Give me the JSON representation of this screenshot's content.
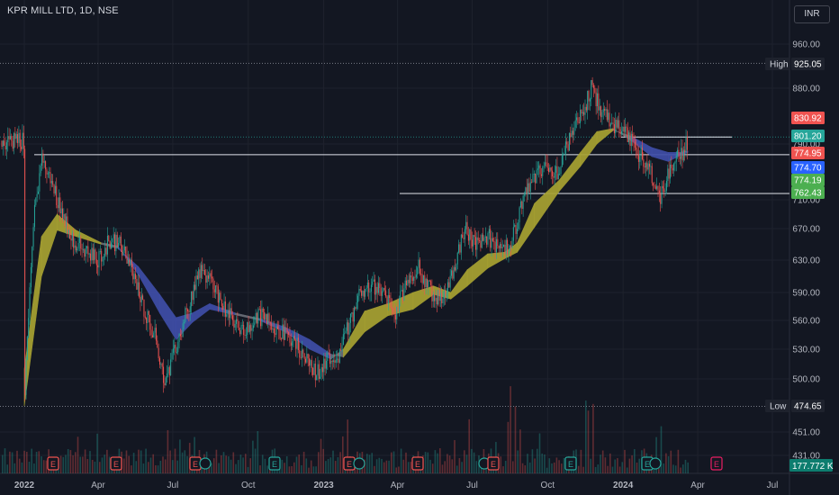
{
  "header": {
    "title": "KPR MILL LTD, 1D, NSE",
    "currency": "INR"
  },
  "colors": {
    "up": "#26a69a",
    "down": "#ef5350",
    "ribbon_bull": "#a8a232",
    "ribbon_bear": "#3f4ea8",
    "ribbon_neutral": "#6b6f78"
  },
  "chart_data": {
    "type": "candlestick",
    "symbol": "KPR MILL LTD",
    "interval": "1D",
    "exchange": "NSE",
    "y_axis_ticks": [
      960,
      880,
      830.92,
      801.2,
      790,
      774.95,
      774.7,
      774.19,
      762.43,
      710,
      670,
      630,
      590,
      560,
      530,
      500,
      474.65,
      451,
      431
    ],
    "price_tick_labels": [
      "960.00",
      "880.00",
      "790.00",
      "710.00",
      "670.00",
      "630.00",
      "590.00",
      "560.00",
      "530.00",
      "500.00",
      "451.00",
      "431.00"
    ],
    "x_axis_labels": [
      "2022",
      "Apr",
      "Jul",
      "Oct",
      "2023",
      "Apr",
      "Jul",
      "Oct",
      "2024",
      "Apr",
      "Jul"
    ],
    "high": {
      "label": "High",
      "value": "925.05"
    },
    "low": {
      "label": "Low",
      "value": "474.65"
    },
    "price_tags": [
      {
        "value": "830.92",
        "color": "#ef5350"
      },
      {
        "value": "801.20",
        "color": "#26a69a"
      },
      {
        "value": "774.95",
        "color": "#ef5350"
      },
      {
        "value": "774.70",
        "color": "#2962ff"
      },
      {
        "value": "774.19",
        "color": "#4caf50"
      },
      {
        "value": "762.43",
        "color": "#4caf50"
      }
    ],
    "volume_label": "177.772 K",
    "horizontal_lines": [
      774.7,
      801.2,
      719
    ],
    "price_path": [
      [
        "2022-01-01",
        480
      ],
      [
        "2022-01-08",
        600
      ],
      [
        "2022-01-14",
        700
      ],
      [
        "2022-01-22",
        768
      ],
      [
        "2022-02-03",
        735
      ],
      [
        "2022-02-17",
        690
      ],
      [
        "2022-03-02",
        655
      ],
      [
        "2022-03-17",
        640
      ],
      [
        "2022-04-01",
        630
      ],
      [
        "2022-04-15",
        655
      ],
      [
        "2022-04-28",
        650
      ],
      [
        "2022-05-12",
        618
      ],
      [
        "2022-05-26",
        575
      ],
      [
        "2022-06-09",
        545
      ],
      [
        "2022-06-22",
        495
      ],
      [
        "2022-07-08",
        540
      ],
      [
        "2022-07-20",
        575
      ],
      [
        "2022-08-03",
        618
      ],
      [
        "2022-08-18",
        602
      ],
      [
        "2022-09-01",
        575
      ],
      [
        "2022-09-15",
        555
      ],
      [
        "2022-09-29",
        548
      ],
      [
        "2022-10-13",
        565
      ],
      [
        "2022-10-27",
        560
      ],
      [
        "2022-11-10",
        548
      ],
      [
        "2022-11-25",
        538
      ],
      [
        "2022-12-08",
        525
      ],
      [
        "2022-12-22",
        505
      ],
      [
        "2023-01-05",
        518
      ],
      [
        "2023-01-19",
        525
      ],
      [
        "2023-02-02",
        558
      ],
      [
        "2023-02-16",
        595
      ],
      [
        "2023-03-02",
        598
      ],
      [
        "2023-03-16",
        588
      ],
      [
        "2023-03-30",
        565
      ],
      [
        "2023-04-13",
        608
      ],
      [
        "2023-04-27",
        620
      ],
      [
        "2023-05-11",
        592
      ],
      [
        "2023-05-25",
        580
      ],
      [
        "2023-06-08",
        618
      ],
      [
        "2023-06-22",
        670
      ],
      [
        "2023-07-06",
        650
      ],
      [
        "2023-07-20",
        662
      ],
      [
        "2023-08-03",
        640
      ],
      [
        "2023-08-17",
        648
      ],
      [
        "2023-08-31",
        705
      ],
      [
        "2023-09-14",
        740
      ],
      [
        "2023-09-28",
        760
      ],
      [
        "2023-10-12",
        750
      ],
      [
        "2023-10-26",
        790
      ],
      [
        "2023-11-09",
        830
      ],
      [
        "2023-11-23",
        880
      ],
      [
        "2023-12-07",
        840
      ],
      [
        "2023-12-21",
        820
      ],
      [
        "2024-01-04",
        805
      ],
      [
        "2024-01-18",
        780
      ],
      [
        "2024-02-01",
        760
      ],
      [
        "2024-02-15",
        712
      ],
      [
        "2024-02-29",
        762
      ],
      [
        "2024-03-14",
        780
      ],
      [
        "2024-03-20",
        795
      ]
    ],
    "ribbon": [
      [
        "2022-01-01",
        475,
        510
      ],
      [
        "2022-01-22",
        610,
        660
      ],
      [
        "2022-02-10",
        668,
        690
      ],
      [
        "2022-03-05",
        660,
        668
      ],
      [
        "2022-04-05",
        650,
        652
      ],
      [
        "2022-04-25",
        645,
        648
      ],
      [
        "2022-05-20",
        622,
        612
      ],
      [
        "2022-06-15",
        588,
        568
      ],
      [
        "2022-07-05",
        563,
        540
      ],
      [
        "2022-07-25",
        568,
        558
      ],
      [
        "2022-08-15",
        578,
        572
      ],
      [
        "2022-09-15",
        568,
        566
      ],
      [
        "2022-10-15",
        562,
        560
      ],
      [
        "2022-11-15",
        553,
        548
      ],
      [
        "2022-12-15",
        540,
        530
      ],
      [
        "2023-01-10",
        525,
        520
      ],
      [
        "2023-01-25",
        522,
        530
      ],
      [
        "2023-02-20",
        548,
        570
      ],
      [
        "2023-03-20",
        565,
        578
      ],
      [
        "2023-04-20",
        572,
        590
      ],
      [
        "2023-05-15",
        588,
        598
      ],
      [
        "2023-06-05",
        583,
        590
      ],
      [
        "2023-06-25",
        598,
        618
      ],
      [
        "2023-07-20",
        620,
        638
      ],
      [
        "2023-08-10",
        632,
        640
      ],
      [
        "2023-08-25",
        640,
        652
      ],
      [
        "2023-09-15",
        672,
        705
      ],
      [
        "2023-10-15",
        722,
        738
      ],
      [
        "2023-11-10",
        758,
        778
      ],
      [
        "2023-11-30",
        790,
        810
      ],
      [
        "2023-12-20",
        812,
        815
      ],
      [
        "2024-01-10",
        803,
        796
      ],
      [
        "2024-02-05",
        785,
        772
      ],
      [
        "2024-02-25",
        778,
        765
      ],
      [
        "2024-03-10",
        778,
        773
      ],
      [
        "2024-03-20",
        780,
        778
      ]
    ]
  }
}
